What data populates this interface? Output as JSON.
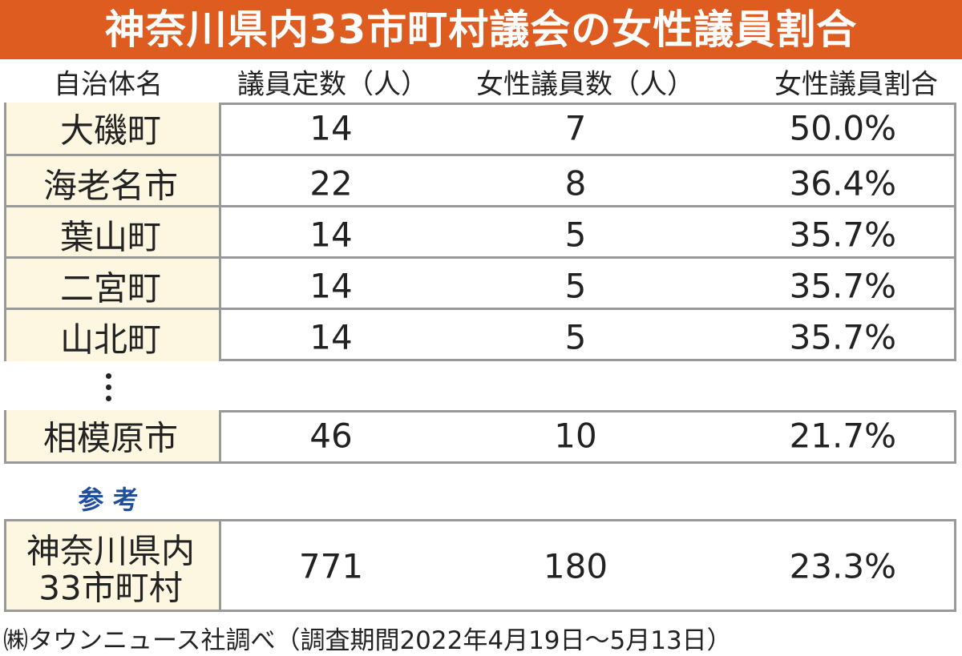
{
  "header": {
    "title": "神奈川県内33市町村議会の女性議員割合"
  },
  "table": {
    "columns": [
      "自治体名",
      "議員定数（人）",
      "女性議員数（人）",
      "女性議員割合"
    ],
    "rows": [
      [
        "大磯町",
        14,
        7,
        "50.0%"
      ],
      [
        "海老名市",
        22,
        8,
        "36.4%"
      ],
      [
        "葉山町",
        14,
        5,
        "35.7%"
      ],
      [
        "二宮町",
        14,
        5,
        "35.7%"
      ],
      [
        "山北町",
        14,
        5,
        "35.7%"
      ]
    ],
    "after_gap_rows": [
      [
        "相模原市",
        46,
        10,
        "21.7%"
      ]
    ]
  },
  "reference": {
    "label": "参 考",
    "name_lines": [
      "神奈川県内",
      "33市町村"
    ],
    "values": [
      771,
      180,
      "23.3%"
    ]
  },
  "footer": "㈱タウンニュース社調べ（調査期間2022年4月19日～5月13日）"
}
